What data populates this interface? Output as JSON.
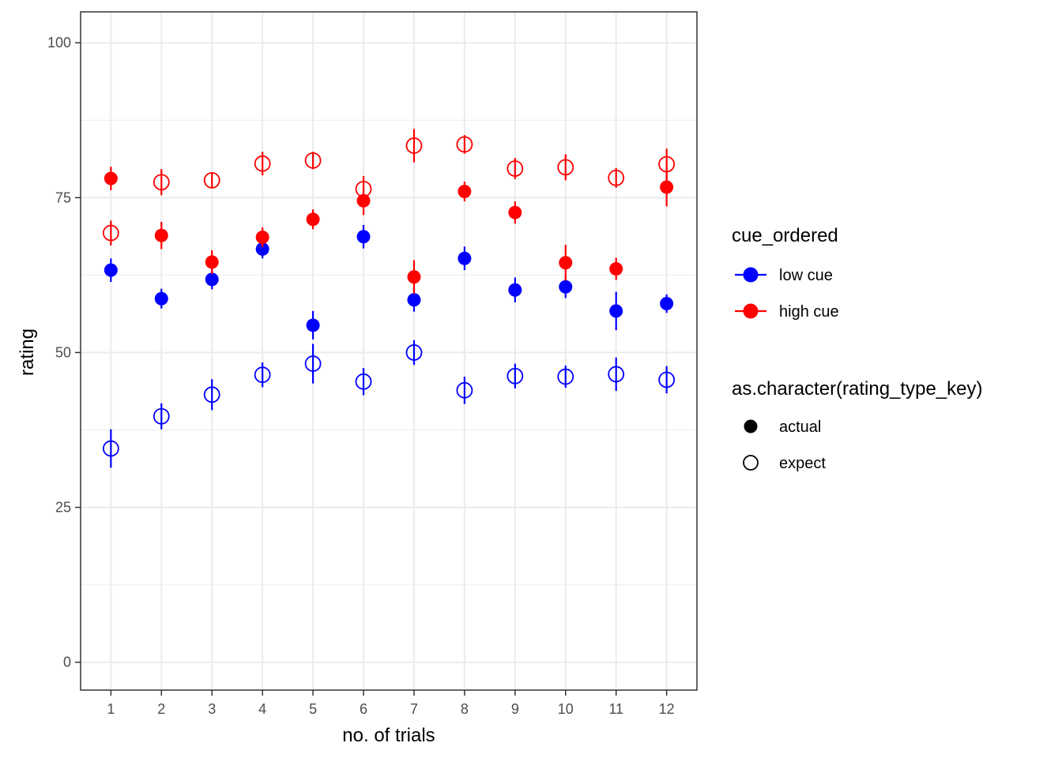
{
  "chart_data": {
    "type": "scatter",
    "xlabel": "no. of trials",
    "ylabel": "rating",
    "x": [
      1,
      2,
      3,
      4,
      5,
      6,
      7,
      8,
      9,
      10,
      11,
      12
    ],
    "x_ticks": [
      "1",
      "2",
      "3",
      "4",
      "5",
      "6",
      "7",
      "8",
      "9",
      "10",
      "11",
      "12"
    ],
    "ylim": [
      -4.5,
      105
    ],
    "y_ticks": [
      0,
      25,
      50,
      75,
      100
    ],
    "grid": true,
    "legend_position": "right",
    "colors": {
      "low_cue": "#0000ff",
      "high_cue": "#ff0000",
      "panel_border": "#333333",
      "grid": "#ebebeb"
    },
    "legends": [
      {
        "title": "cue_ordered",
        "entries": [
          {
            "label": "low cue",
            "color": "#0000ff"
          },
          {
            "label": "high cue",
            "color": "#ff0000"
          }
        ]
      },
      {
        "title": "as.character(rating_type_key)",
        "entries": [
          {
            "label": "actual",
            "shape": "filled-circle"
          },
          {
            "label": "expect",
            "shape": "open-circle"
          }
        ]
      }
    ],
    "series": [
      {
        "name": "low cue",
        "rating_type": "actual",
        "color": "#0000ff",
        "shape": "filled",
        "values": [
          63.3,
          58.7,
          61.8,
          66.7,
          54.4,
          68.7,
          58.5,
          65.2,
          60.1,
          60.6,
          56.7,
          57.9
        ],
        "err": [
          1.9,
          1.6,
          1.6,
          1.5,
          2.3,
          1.9,
          1.9,
          1.9,
          2.0,
          1.8,
          3.1,
          1.5
        ]
      },
      {
        "name": "high cue",
        "rating_type": "actual",
        "color": "#ff0000",
        "shape": "filled",
        "values": [
          78.1,
          68.9,
          64.6,
          68.6,
          71.5,
          74.5,
          62.2,
          76.0,
          72.6,
          64.5,
          63.5,
          76.7
        ],
        "err": [
          1.9,
          2.2,
          1.9,
          1.6,
          1.6,
          2.3,
          2.7,
          1.6,
          1.8,
          2.9,
          1.8,
          3.1
        ]
      },
      {
        "name": "low cue",
        "rating_type": "expect",
        "color": "#0000ff",
        "shape": "open",
        "values": [
          34.5,
          39.7,
          43.2,
          46.4,
          48.2,
          45.3,
          50.0,
          43.9,
          46.2,
          46.1,
          46.5,
          45.6
        ],
        "err": [
          3.1,
          2.1,
          2.5,
          2.0,
          3.2,
          2.2,
          2.0,
          2.2,
          2.0,
          1.8,
          2.7,
          2.2
        ]
      },
      {
        "name": "high cue",
        "rating_type": "expect",
        "color": "#ff0000",
        "shape": "open",
        "values": [
          69.3,
          77.5,
          77.8,
          80.5,
          81.0,
          76.4,
          83.4,
          83.6,
          79.7,
          79.9,
          78.2,
          80.4
        ],
        "err": [
          2.0,
          2.1,
          1.2,
          1.9,
          1.4,
          2.1,
          2.7,
          1.5,
          1.7,
          2.1,
          1.6,
          2.5
        ]
      }
    ]
  }
}
